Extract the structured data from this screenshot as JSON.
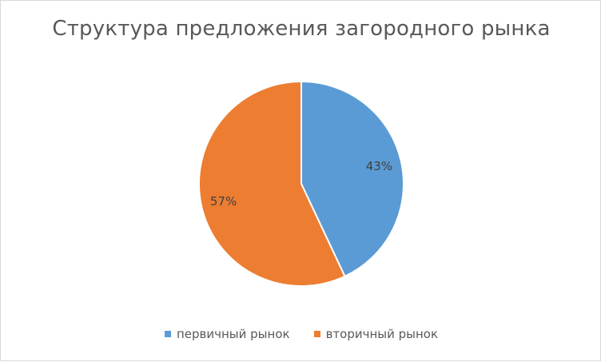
{
  "chart_data": {
    "type": "pie",
    "title": "Структура предложения загородного рынка",
    "categories": [
      "первичный рынок",
      "вторичный рынок"
    ],
    "values": [
      43,
      57
    ],
    "data_labels": [
      "43%",
      "57%"
    ],
    "colors": [
      "#5B9BD5",
      "#ED7D31"
    ],
    "legend_position": "bottom",
    "start_angle_deg": 0,
    "direction": "clockwise"
  }
}
